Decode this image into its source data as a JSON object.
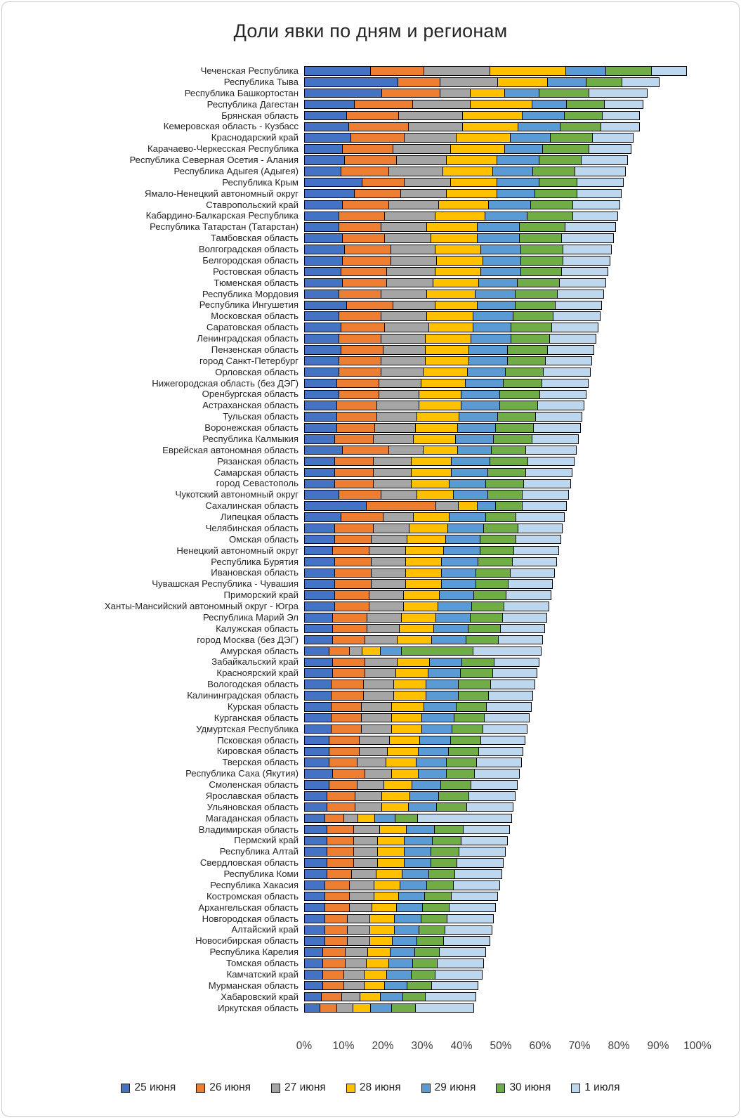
{
  "title": "Доли явки по дням и регионам",
  "chart_data": {
    "type": "bar",
    "stacked": true,
    "orientation": "horizontal",
    "title": "Доли явки по дням и регионам",
    "xlabel": "",
    "ylabel": "",
    "xlim": [
      0,
      100
    ],
    "grid": true,
    "legend_position": "bottom",
    "x_ticks": [
      "0%",
      "10%",
      "20%",
      "30%",
      "40%",
      "50%",
      "60%",
      "70%",
      "80%",
      "90%",
      "100%"
    ],
    "series_names": [
      "25 июня",
      "26 июня",
      "27 июня",
      "28 июня",
      "29 июня",
      "30 июня",
      "1 июля"
    ],
    "series_colors": [
      "#4472C4",
      "#ED7D31",
      "#A5A5A5",
      "#FFC000",
      "#5B9BD5",
      "#70AD47",
      "#BDD7EE"
    ],
    "units": "percent of voters per day, bar total = overall turnout",
    "categories": [
      "Чеченская Республика",
      "Республика Тыва",
      "Республика Башкортостан",
      "Республика Дагестан",
      "Брянская область",
      "Кемеровская область - Кузбасс",
      "Краснодарский край",
      "Карачаево-Черкесская Республика",
      "Республика Северная Осетия - Алания",
      "Республика Адыгея (Адыгея)",
      "Республика Крым",
      "Ямало-Ненецкий автономный округ",
      "Ставропольский край",
      "Кабардино-Балкарская Республика",
      "Республика Татарстан (Татарстан)",
      "Тамбовская область",
      "Волгоградская область",
      "Белгородская область",
      "Ростовская область",
      "Тюменская область",
      "Республика Мордовия",
      "Республика Ингушетия",
      "Московская область",
      "Саратовская область",
      "Ленинградская область",
      "Пензенская область",
      "город Санкт-Петербург",
      "Орловская область",
      "Нижегородская область (без ДЭГ)",
      "Оренбургская область",
      "Астраханская область",
      "Тульская область",
      "Воронежская область",
      "Республика Калмыкия",
      "Еврейская автономная область",
      "Рязанская область",
      "Самарская область",
      "город Севастополь",
      "Чукотский автономный округ",
      "Сахалинская область",
      "Липецкая область",
      "Челябинская область",
      "Омская область",
      "Ненецкий автономный округ",
      "Республика Бурятия",
      "Ивановская область",
      "Чувашская Республика - Чувашия",
      "Приморский край",
      "Ханты-Мансийский автономный округ - Югра",
      "Республика Марий Эл",
      "Калужская область",
      "город Москва (без ДЭГ)",
      "Амурская область",
      "Забайкальский край",
      "Красноярский край",
      "Вологодская область",
      "Калининградская область",
      "Курская область",
      "Курганская область",
      "Удмуртская Республика",
      "Псковская область",
      "Кировская область",
      "Тверская область",
      "Республика Саха (Якутия)",
      "Смоленская область",
      "Ярославская область",
      "Ульяновская область",
      "Магаданская область",
      "Владимирская область",
      "Пермский край",
      "Республика Алтай",
      "Свердловская область",
      "Республика Коми",
      "Республика Хакасия",
      "Костромская область",
      "Архангельская область",
      "Новгородская область",
      "Алтайский край",
      "Новосибирская область",
      "Республика Карелия",
      "Томская область",
      "Камчатский край",
      "Мурманская область",
      "Хабаровский край",
      "Иркутская область"
    ],
    "rows": [
      [
        17,
        14,
        17,
        19.5,
        10.5,
        12,
        9
      ],
      [
        24,
        11,
        15,
        13,
        10,
        9.5,
        9.5
      ],
      [
        20,
        15,
        8,
        9,
        9,
        13,
        15
      ],
      [
        13,
        15,
        15,
        16,
        9,
        10,
        10
      ],
      [
        11,
        13.5,
        16.5,
        15.5,
        11,
        10,
        9.5
      ],
      [
        11.5,
        15.5,
        14,
        14.5,
        11,
        10.5,
        10
      ],
      [
        12,
        14,
        13.5,
        14,
        10.5,
        11,
        10.5
      ],
      [
        10,
        13,
        15,
        14,
        10,
        12,
        11
      ],
      [
        10.5,
        13.5,
        13,
        13,
        11,
        11,
        12
      ],
      [
        9.5,
        12.5,
        14,
        13,
        10.5,
        11,
        13
      ],
      [
        15,
        11,
        12,
        12,
        11,
        10,
        12
      ],
      [
        13,
        12,
        12,
        13,
        10,
        11,
        11.5
      ],
      [
        10,
        12,
        13,
        13,
        11,
        11,
        12
      ],
      [
        9,
        12,
        13,
        13,
        11,
        12,
        11.5
      ],
      [
        9,
        11,
        12,
        13,
        11,
        12,
        13
      ],
      [
        10,
        11,
        12,
        12,
        11,
        11,
        13.5
      ],
      [
        10.5,
        12,
        11.5,
        12,
        10.5,
        11,
        12.5
      ],
      [
        10,
        12.5,
        12,
        12,
        10,
        11,
        12
      ],
      [
        9.5,
        12,
        12.5,
        12,
        10.5,
        10.5,
        12
      ],
      [
        10,
        11.5,
        12,
        12,
        10,
        11,
        12
      ],
      [
        9,
        11,
        12,
        12.5,
        10.5,
        11,
        12
      ],
      [
        11,
        12,
        11,
        11,
        10,
        10.5,
        12
      ],
      [
        9,
        11,
        12,
        12,
        10.5,
        10.5,
        12
      ],
      [
        9.5,
        11.5,
        11.5,
        11.5,
        10,
        10.5,
        12
      ],
      [
        9,
        11,
        11.5,
        12,
        10.5,
        10,
        12
      ],
      [
        9.5,
        11,
        11,
        11.5,
        10,
        10.5,
        12
      ],
      [
        9,
        11,
        11.5,
        11.5,
        10,
        10,
        12
      ],
      [
        9,
        11,
        11,
        11.5,
        10,
        10,
        12
      ],
      [
        8.5,
        11,
        11,
        11.5,
        10,
        10,
        12
      ],
      [
        9,
        10.5,
        10.5,
        11,
        10,
        10.5,
        12
      ],
      [
        8.5,
        10.5,
        11,
        11,
        10,
        10,
        12
      ],
      [
        8.5,
        10.5,
        10.5,
        11,
        10,
        10,
        12
      ],
      [
        8.5,
        10,
        10.5,
        11,
        10,
        10,
        12
      ],
      [
        8,
        10,
        10.5,
        11,
        10,
        10,
        12
      ],
      [
        10,
        12,
        9,
        9,
        9,
        9,
        13
      ],
      [
        8,
        10,
        10,
        10.5,
        10,
        10,
        12
      ],
      [
        8,
        10,
        10,
        10.5,
        9.5,
        10,
        12
      ],
      [
        8,
        10,
        10,
        10,
        9.5,
        10,
        12
      ],
      [
        9,
        11,
        9.5,
        9.5,
        9,
        9,
        12
      ],
      [
        16,
        18,
        6,
        5,
        5,
        7,
        11.5
      ],
      [
        9.5,
        11,
        8,
        9.5,
        9.5,
        8,
        12.5
      ],
      [
        8,
        10,
        9.5,
        10,
        9.5,
        9,
        11.5
      ],
      [
        8,
        9.5,
        9.5,
        10,
        9,
        9.5,
        11.5
      ],
      [
        7.5,
        9.5,
        9.5,
        10,
        9.5,
        9,
        11.5
      ],
      [
        8,
        9.5,
        9,
        9.5,
        9.5,
        9,
        11.5
      ],
      [
        8,
        9.5,
        9,
        9.5,
        9,
        9,
        11.5
      ],
      [
        8,
        9.5,
        9,
        9.5,
        9,
        8.5,
        11.5
      ],
      [
        8,
        9,
        9,
        9.5,
        9,
        8.5,
        11.5
      ],
      [
        8,
        9,
        9,
        9,
        9,
        8.5,
        11.5
      ],
      [
        7.5,
        9,
        9,
        9,
        9,
        8.5,
        11.5
      ],
      [
        7.5,
        9,
        8.5,
        9,
        9,
        8.5,
        11.5
      ],
      [
        7.5,
        8.5,
        8.5,
        9,
        9,
        8.5,
        11.5
      ],
      [
        6.5,
        5.5,
        3.5,
        5,
        5.5,
        18.5,
        17.5
      ],
      [
        7.5,
        8.5,
        8.5,
        8.5,
        8.5,
        8.5,
        11.5
      ],
      [
        7.5,
        8.5,
        8,
        8.5,
        8.5,
        8.5,
        11.5
      ],
      [
        7,
        8.5,
        8,
        8.5,
        8.5,
        8.5,
        11.5
      ],
      [
        7,
        8.5,
        8,
        8.5,
        8.5,
        8,
        11.5
      ],
      [
        7,
        8,
        8,
        8.5,
        8.5,
        8,
        11.5
      ],
      [
        7,
        8,
        8,
        8,
        8.5,
        8,
        11.5
      ],
      [
        7,
        8,
        8,
        8,
        8,
        8,
        11.5
      ],
      [
        6.5,
        8,
        8,
        8,
        8,
        8,
        11.5
      ],
      [
        6.5,
        8,
        7.5,
        8,
        8,
        8,
        11.5
      ],
      [
        6.5,
        7.5,
        7.5,
        8,
        8,
        8,
        11.5
      ],
      [
        7.5,
        8.5,
        7,
        7,
        7.5,
        7.5,
        11.5
      ],
      [
        6.5,
        7.5,
        7,
        7.5,
        7.5,
        8,
        12
      ],
      [
        6,
        7.5,
        7,
        7.5,
        7.5,
        8,
        12
      ],
      [
        6,
        7.5,
        7,
        7,
        7.5,
        8,
        12
      ],
      [
        5.5,
        5,
        4,
        4.5,
        5.5,
        6,
        24
      ],
      [
        6,
        7,
        7,
        7,
        7.5,
        7.5,
        12
      ],
      [
        6,
        7,
        6.5,
        7,
        7.5,
        7.5,
        12
      ],
      [
        6,
        7,
        6.5,
        7,
        7,
        7.5,
        12
      ],
      [
        6,
        7,
        6.5,
        7,
        7,
        7,
        12
      ],
      [
        6,
        6.5,
        6.5,
        7,
        7,
        7,
        12
      ],
      [
        5.5,
        6.5,
        6.5,
        7,
        7,
        7,
        12
      ],
      [
        5.5,
        6.5,
        6.5,
        6.5,
        7,
        7,
        12
      ],
      [
        5.5,
        6.5,
        6,
        6.5,
        7,
        7,
        12
      ],
      [
        5.5,
        6,
        6,
        6.5,
        7,
        7,
        12
      ],
      [
        5.5,
        6,
        6,
        6.5,
        6.5,
        7,
        12
      ],
      [
        5.5,
        6,
        6,
        6,
        6.5,
        7,
        12
      ],
      [
        5,
        6,
        6,
        6,
        6.5,
        6.5,
        12
      ],
      [
        5,
        6,
        5.5,
        6,
        6.5,
        6.5,
        12
      ],
      [
        5,
        5.5,
        5.5,
        6,
        6.5,
        6.5,
        12
      ],
      [
        5,
        5.5,
        5.5,
        5.5,
        6,
        6.5,
        12
      ],
      [
        4.5,
        5.5,
        5,
        5.5,
        6,
        6,
        13
      ],
      [
        4.2,
        4.5,
        4.5,
        4.8,
        5.5,
        6.5,
        15
      ]
    ]
  },
  "colors": {
    "gridline": "#d9d9d9",
    "segment_border": "#000000",
    "axis_text": "#404040",
    "label_text": "#262626"
  }
}
